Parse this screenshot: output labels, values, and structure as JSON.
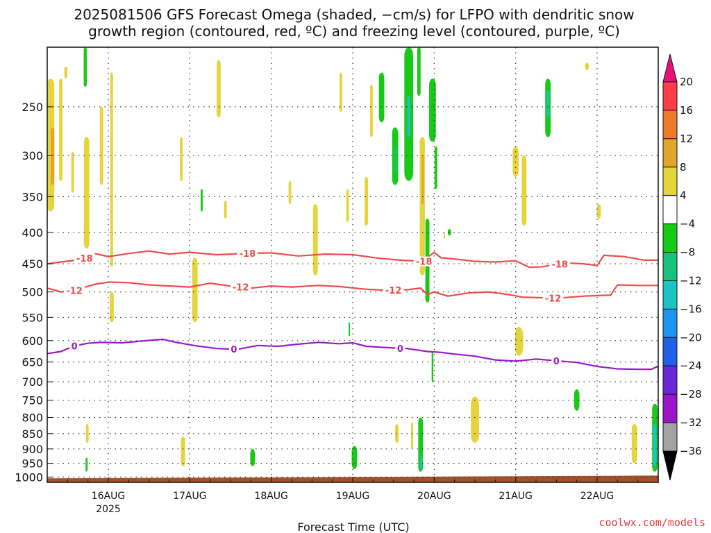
{
  "chart_data": {
    "type": "heatmap",
    "title_lines": [
      "2025081506 GFS Forecast Omega (shaded, −cm/s) for LFPO with dendritic snow",
      "growth region (contoured, red, ºC) and freezing level (contoured, purple, ºC)"
    ],
    "xlabel": "Forecast Time (UTC)",
    "x_ticks": [
      {
        "label": "16AUG",
        "sub": "2025",
        "x": 24
      },
      {
        "label": "17AUG",
        "x": 48
      },
      {
        "label": "18AUG",
        "x": 72
      },
      {
        "label": "19AUG",
        "x": 96
      },
      {
        "label": "20AUG",
        "x": 120
      },
      {
        "label": "21AUG",
        "x": 144
      },
      {
        "label": "22AUG",
        "x": 168
      }
    ],
    "xlim": [
      6,
      186
    ],
    "ylabel": "",
    "y_ticks": [
      250,
      300,
      350,
      400,
      450,
      500,
      550,
      600,
      650,
      700,
      750,
      800,
      850,
      900,
      950,
      1000
    ],
    "ylim": [
      200,
      1020
    ],
    "y_scale": "log-pressure",
    "grid": true,
    "colorbar": {
      "labels": [
        "20",
        "16",
        "12",
        "8",
        "4",
        "−4",
        "−8",
        "−12",
        "−16",
        "−20",
        "−24",
        "−28",
        "−32",
        "−36"
      ],
      "colors": [
        "#ff3d4a",
        "#ef7a2a",
        "#e2a52c",
        "#e5d43c",
        "#ffffff",
        "#18c918",
        "#17c27c",
        "#18c4c4",
        "#1a96f0",
        "#2260e8",
        "#6a28d8",
        "#9a14c8",
        "#a3a3a3"
      ],
      "top_color": "#e8137a",
      "bottom_color": "#000000"
    },
    "contours": [
      {
        "name": "-18",
        "color": "#ef4a4a",
        "labels_at": [
          17,
          65,
          117,
          157
        ],
        "points": [
          [
            6,
            450
          ],
          [
            10,
            447
          ],
          [
            16,
            443
          ],
          [
            20,
            433
          ],
          [
            24,
            438
          ],
          [
            30,
            433
          ],
          [
            36,
            429
          ],
          [
            42,
            434
          ],
          [
            48,
            431
          ],
          [
            56,
            435
          ],
          [
            64,
            433
          ],
          [
            72,
            432
          ],
          [
            80,
            437
          ],
          [
            88,
            434
          ],
          [
            96,
            435
          ],
          [
            104,
            441
          ],
          [
            110,
            444
          ],
          [
            117,
            446
          ],
          [
            118,
            440
          ],
          [
            120,
            431
          ],
          [
            122,
            440
          ],
          [
            126,
            442
          ],
          [
            132,
            446
          ],
          [
            138,
            447
          ],
          [
            144,
            445
          ],
          [
            148,
            456
          ],
          [
            152,
            455
          ],
          [
            156,
            451
          ],
          [
            160,
            449
          ],
          [
            164,
            450
          ],
          [
            168,
            453
          ],
          [
            170,
            436
          ],
          [
            176,
            438
          ],
          [
            182,
            444
          ],
          [
            186,
            444
          ]
        ]
      },
      {
        "name": "-12",
        "color": "#ef4a4a",
        "labels_at": [
          14,
          63,
          108,
          155
        ],
        "points": [
          [
            6,
            493
          ],
          [
            10,
            500
          ],
          [
            14,
            497
          ],
          [
            20,
            486
          ],
          [
            24,
            482
          ],
          [
            30,
            483
          ],
          [
            36,
            487
          ],
          [
            42,
            489
          ],
          [
            48,
            491
          ],
          [
            54,
            484
          ],
          [
            60,
            489
          ],
          [
            66,
            493
          ],
          [
            72,
            489
          ],
          [
            78,
            491
          ],
          [
            86,
            488
          ],
          [
            92,
            490
          ],
          [
            100,
            495
          ],
          [
            106,
            497
          ],
          [
            112,
            496
          ],
          [
            116,
            493
          ],
          [
            118,
            505
          ],
          [
            120,
            500
          ],
          [
            124,
            508
          ],
          [
            130,
            502
          ],
          [
            136,
            500
          ],
          [
            142,
            505
          ],
          [
            146,
            510
          ],
          [
            152,
            511
          ],
          [
            156,
            512
          ],
          [
            160,
            510
          ],
          [
            164,
            508
          ],
          [
            168,
            507
          ],
          [
            172,
            506
          ],
          [
            174,
            487
          ],
          [
            180,
            488
          ],
          [
            186,
            488
          ]
        ]
      },
      {
        "name": "0",
        "color": "#9b19cc",
        "labels_at": [
          14,
          61,
          110,
          156
        ],
        "points": [
          [
            6,
            630
          ],
          [
            10,
            625
          ],
          [
            14,
            612
          ],
          [
            18,
            606
          ],
          [
            22,
            604
          ],
          [
            28,
            605
          ],
          [
            34,
            601
          ],
          [
            40,
            597
          ],
          [
            44,
            604
          ],
          [
            50,
            612
          ],
          [
            56,
            618
          ],
          [
            62,
            620
          ],
          [
            68,
            611
          ],
          [
            74,
            613
          ],
          [
            80,
            608
          ],
          [
            86,
            604
          ],
          [
            92,
            607
          ],
          [
            96,
            605
          ],
          [
            100,
            613
          ],
          [
            106,
            616
          ],
          [
            112,
            618
          ],
          [
            118,
            625
          ],
          [
            122,
            627
          ],
          [
            126,
            631
          ],
          [
            132,
            636
          ],
          [
            138,
            645
          ],
          [
            144,
            648
          ],
          [
            150,
            643
          ],
          [
            156,
            647
          ],
          [
            162,
            651
          ],
          [
            168,
            661
          ],
          [
            174,
            667
          ],
          [
            180,
            668
          ],
          [
            184,
            668
          ],
          [
            186,
            660
          ],
          [
            186,
            690
          ]
        ]
      }
    ],
    "shaded_cells": [
      {
        "x": 7,
        "y": [
          225,
          370
        ],
        "w": 2.2,
        "color": "#e5d43c"
      },
      {
        "x": 7.6,
        "y": [
          270,
          335
        ],
        "w": 1.0,
        "color": "#e2a52c"
      },
      {
        "x": 10,
        "y": [
          225,
          330
        ],
        "w": 1.0,
        "color": "#e5d43c"
      },
      {
        "x": 11.5,
        "y": [
          215,
          225
        ],
        "w": 0.9,
        "color": "#e5d43c"
      },
      {
        "x": 13.5,
        "y": [
          296,
          345
        ],
        "w": 0.8,
        "color": "#e5d43c"
      },
      {
        "x": 17.2,
        "y": [
          200,
          232
        ],
        "w": 0.9,
        "color": "#18c918"
      },
      {
        "x": 17.6,
        "y": [
          280,
          425
        ],
        "w": 1.6,
        "color": "#e5d43c"
      },
      {
        "x": 22,
        "y": [
          250,
          335
        ],
        "w": 1.0,
        "color": "#e5d43c"
      },
      {
        "x": 25,
        "y": [
          220,
          455
        ],
        "w": 0.8,
        "color": "#e5d43c"
      },
      {
        "x": 25,
        "y": [
          500,
          560
        ],
        "w": 1.2,
        "color": "#e5d43c"
      },
      {
        "x": 45.5,
        "y": [
          280,
          330
        ],
        "w": 0.8,
        "color": "#e5d43c"
      },
      {
        "x": 49.5,
        "y": [
          440,
          560
        ],
        "w": 1.6,
        "color": "#e5d43c"
      },
      {
        "x": 51.5,
        "y": [
          340,
          370
        ],
        "w": 0.6,
        "color": "#18c918"
      },
      {
        "x": 56.5,
        "y": [
          210,
          260
        ],
        "w": 1.2,
        "color": "#e5d43c"
      },
      {
        "x": 58.5,
        "y": [
          355,
          380
        ],
        "w": 0.8,
        "color": "#e5d43c"
      },
      {
        "x": 77.5,
        "y": [
          330,
          360
        ],
        "w": 0.8,
        "color": "#e5d43c"
      },
      {
        "x": 85,
        "y": [
          360,
          470
        ],
        "w": 1.4,
        "color": "#e5d43c"
      },
      {
        "x": 92.5,
        "y": [
          220,
          255
        ],
        "w": 0.8,
        "color": "#e5d43c"
      },
      {
        "x": 94.5,
        "y": [
          340,
          385
        ],
        "w": 0.8,
        "color": "#e5d43c"
      },
      {
        "x": 100,
        "y": [
          325,
          390
        ],
        "w": 1.0,
        "color": "#e5d43c"
      },
      {
        "x": 101.5,
        "y": [
          230,
          280
        ],
        "w": 0.8,
        "color": "#e5d43c"
      },
      {
        "x": 104.5,
        "y": [
          220,
          265
        ],
        "w": 1.6,
        "color": "#18c918"
      },
      {
        "x": 108.5,
        "y": [
          270,
          335
        ],
        "w": 1.8,
        "color": "#18c918"
      },
      {
        "x": 108.7,
        "y": [
          290,
          320
        ],
        "w": 0.7,
        "color": "#17c27c"
      },
      {
        "x": 112.5,
        "y": [
          200,
          330
        ],
        "w": 2.6,
        "color": "#18c918"
      },
      {
        "x": 112.5,
        "y": [
          240,
          280
        ],
        "w": 0.9,
        "color": "#18c4c4"
      },
      {
        "x": 115.5,
        "y": [
          200,
          240
        ],
        "w": 1.0,
        "color": "#18c918"
      },
      {
        "x": 116.5,
        "y": [
          280,
          470
        ],
        "w": 1.5,
        "color": "#e5d43c"
      },
      {
        "x": 116.6,
        "y": [
          300,
          360
        ],
        "w": 0.6,
        "color": "#e2a52c"
      },
      {
        "x": 118,
        "y": [
          380,
          520
        ],
        "w": 1.2,
        "color": "#18c918"
      },
      {
        "x": 119.5,
        "y": [
          225,
          285
        ],
        "w": 2.0,
        "color": "#18c918"
      },
      {
        "x": 120.5,
        "y": [
          290,
          340
        ],
        "w": 0.8,
        "color": "#18c918"
      },
      {
        "x": 124.5,
        "y": [
          395,
          405
        ],
        "w": 1.0,
        "color": "#18c918"
      },
      {
        "x": 153.5,
        "y": [
          225,
          280
        ],
        "w": 1.6,
        "color": "#18c918"
      },
      {
        "x": 153.5,
        "y": [
          235,
          260
        ],
        "w": 0.7,
        "color": "#18c4c4"
      },
      {
        "x": 144,
        "y": [
          290,
          325
        ],
        "w": 1.8,
        "color": "#e5d43c"
      },
      {
        "x": 146.5,
        "y": [
          300,
          390
        ],
        "w": 1.4,
        "color": "#e5d43c"
      },
      {
        "x": 165,
        "y": [
          212,
          218
        ],
        "w": 1.2,
        "color": "#e5d43c"
      },
      {
        "x": 168.5,
        "y": [
          360,
          380
        ],
        "w": 1.2,
        "color": "#e5d43c"
      },
      {
        "x": 145,
        "y": [
          570,
          635
        ],
        "w": 2.4,
        "color": "#e5d43c"
      },
      {
        "x": 162,
        "y": [
          720,
          780
        ],
        "w": 1.6,
        "color": "#18c918"
      },
      {
        "x": 132,
        "y": [
          740,
          880
        ],
        "w": 2.4,
        "color": "#e5d43c"
      },
      {
        "x": 109,
        "y": [
          820,
          880
        ],
        "w": 1.0,
        "color": "#e5d43c"
      },
      {
        "x": 113.5,
        "y": [
          815,
          900
        ],
        "w": 0.6,
        "color": "#e5d43c"
      },
      {
        "x": 116,
        "y": [
          800,
          980
        ],
        "w": 1.4,
        "color": "#18c918"
      },
      {
        "x": 116.2,
        "y": [
          920,
          975
        ],
        "w": 0.6,
        "color": "#18c4c4"
      },
      {
        "x": 179,
        "y": [
          820,
          950
        ],
        "w": 1.6,
        "color": "#e5d43c"
      },
      {
        "x": 185,
        "y": [
          760,
          980
        ],
        "w": 1.6,
        "color": "#18c918"
      },
      {
        "x": 185,
        "y": [
          820,
          960
        ],
        "w": 1.0,
        "color": "#18c4c4"
      },
      {
        "x": 17.8,
        "y": [
          820,
          880
        ],
        "w": 0.8,
        "color": "#e5d43c"
      },
      {
        "x": 17.6,
        "y": [
          930,
          980
        ],
        "w": 0.6,
        "color": "#18c918"
      },
      {
        "x": 46,
        "y": [
          860,
          960
        ],
        "w": 1.2,
        "color": "#e5d43c"
      },
      {
        "x": 66.5,
        "y": [
          900,
          960
        ],
        "w": 1.4,
        "color": "#18c918"
      },
      {
        "x": 96.5,
        "y": [
          890,
          970
        ],
        "w": 1.6,
        "color": "#18c918"
      },
      {
        "x": 119.5,
        "y": [
          625,
          700
        ],
        "w": 0.5,
        "color": "#18c918"
      },
      {
        "x": 95,
        "y": [
          560,
          590
        ],
        "w": 0.4,
        "color": "#18c918"
      },
      {
        "x": 123,
        "y": [
          400,
          410
        ],
        "w": 0.4,
        "color": "#e5d43c"
      }
    ],
    "ground": {
      "color": "#a0522d",
      "from_pressure": 1005
    }
  },
  "credit": "coolwx.com/models"
}
